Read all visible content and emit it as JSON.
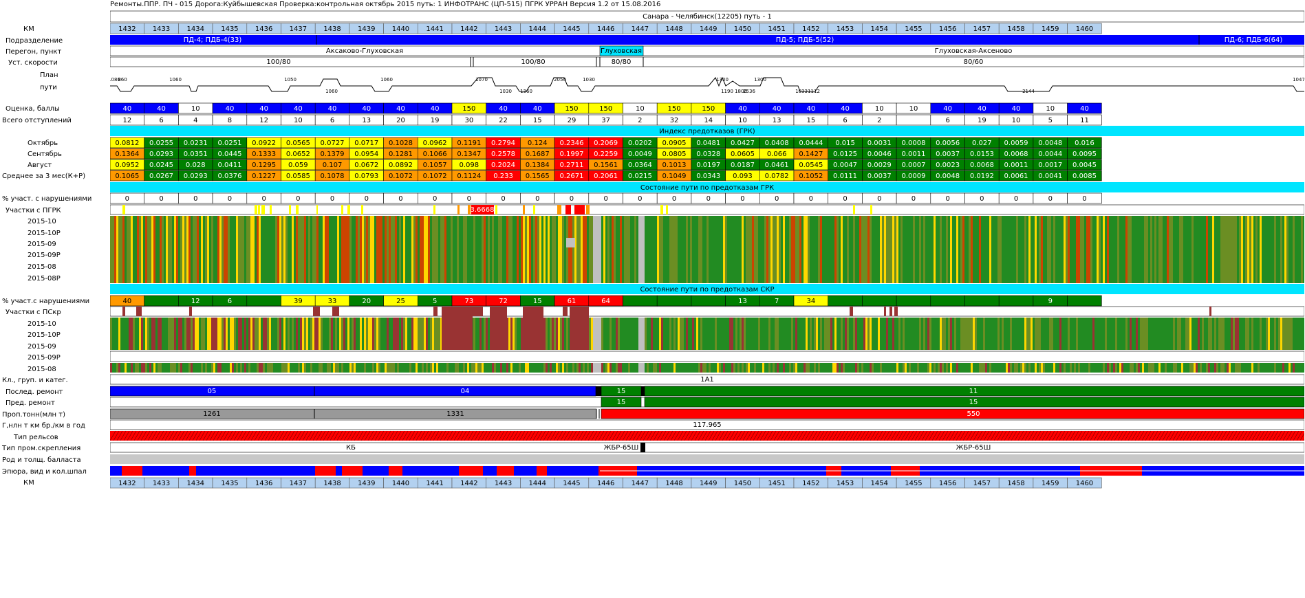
{
  "header": "Ремонты.ППР.  ПЧ - 015   Дорога:Куйбышевская Проверка:контрольная октябрь 2015  путь: 1 ИНФОТРАНС (ЦП-515) ПГРК УРРАН Версия 1.2 от 15.08.2016",
  "section_title": "Санара - Челябинск(12205) путь - 1",
  "labels": {
    "km": "КМ",
    "division": "Подразделение",
    "haul": "Перегон, пункт",
    "speed": "Уст. скорости",
    "plan1": "План",
    "plan2": "пути",
    "score": "Оценка, баллы",
    "total": "Всего отступлений",
    "oct": "Октябрь",
    "sep": "Сентябрь",
    "aug": "Август",
    "avg": "Среднее за 3 мес(К+Р)",
    "pct1": "% участ. с нарушениями",
    "pgrk": "Участки с ПГРК",
    "h1": "2015-10",
    "h2": "2015-10Р",
    "h3": "2015-09",
    "h4": "2015-09Р",
    "h5": "2015-08",
    "h6": "2015-08Р",
    "pct2": "% участ.с нарушениями",
    "pskr": "Участки с ПСкр",
    "s1": "2015-10",
    "s2": "2015-10Р",
    "s3": "2015-09",
    "s4": "2015-09Р",
    "s5": "2015-08",
    "class": "Кл., груп. и катег.",
    "lastrep": "Послед. ремонт",
    "prevrep": "Пред. ремонт",
    "tonnage": "Проп.тонн(млн т)",
    "gnet": "Г,нлн т км бр./км в год",
    "rails": "Тип рельсов",
    "fast": "Тип пром.скрепления",
    "ballast": "Род и толщ. балласта",
    "epura": "Эпюра, вид и кол.шпал",
    "km_bottom": "КМ"
  },
  "bands": {
    "grk": "Индекс предотказов (ГРК)",
    "grk_state": "Состояние пути по предотказам ГРК",
    "skr_state": "Состояние пути по предотказам СКР"
  },
  "division": [
    "ПД-4; ПДБ-4(33)",
    "ПД-5; ПДБ-5(52)",
    "ПД-6; ПДБ-6(64)"
  ],
  "hauls": [
    "Аксаково-Глуховская",
    "Глуховская",
    "Глуховская-Аксеново"
  ],
  "speeds": [
    "100/80",
    "100/80",
    "80/80",
    "80/60"
  ],
  "plan_labels": [
    "1080",
    "860",
    "1060",
    "1050",
    "1060",
    "1060",
    "1070",
    "1030",
    "1360",
    "2050",
    "1030",
    "1300",
    "1190",
    "1800",
    "2536",
    "1300",
    "1033",
    "1112",
    "2144",
    "1047"
  ],
  "class_value": "1А1",
  "last_repair": [
    "05",
    "04",
    "15",
    "11"
  ],
  "prev_repair": [
    "15",
    "15"
  ],
  "tonnage": [
    "1261",
    "1331",
    "550"
  ],
  "gnet_value": "117.965",
  "fastening": [
    "КБ",
    "ЖБР-65Ш",
    "ЖБР-65Ш"
  ],
  "pgrk_marker": "3.6668",
  "colors": {
    "blue": "#0000ff",
    "yellow": "#ffff00",
    "orange": "#ff9900",
    "red": "#ff0000",
    "green": "#008000",
    "darkred": "#993333",
    "cyan": "#00e5ff",
    "kmblue": "#b3d1f0"
  },
  "chart_data": {
    "type": "table",
    "km": [
      "1432",
      "1433",
      "1434",
      "1435",
      "1436",
      "1437",
      "1438",
      "1439",
      "1440",
      "1441",
      "1442",
      "1443",
      "1444",
      "1445",
      "1446",
      "1447",
      "1448",
      "1449",
      "1450",
      "1451",
      "1452",
      "1453",
      "1454",
      "1455",
      "1456",
      "1457",
      "1458",
      "1459",
      "1460"
    ],
    "score": [
      "40",
      "40",
      "10",
      "40",
      "40",
      "40",
      "40",
      "40",
      "40",
      "40",
      "150",
      "40",
      "40",
      "150",
      "150",
      "10",
      "150",
      "150",
      "40",
      "40",
      "40",
      "40",
      "10",
      "10",
      "40",
      "40",
      "40",
      "10",
      "40"
    ],
    "total": [
      "12",
      "6",
      "4",
      "8",
      "12",
      "10",
      "6",
      "13",
      "20",
      "19",
      "30",
      "22",
      "15",
      "29",
      "37",
      "2",
      "32",
      "14",
      "10",
      "13",
      "15",
      "6",
      "2",
      "",
      "6",
      "19",
      "10",
      "5",
      "11"
    ],
    "oct": [
      "0.0812",
      "0.0255",
      "0.0231",
      "0.0251",
      "0.0922",
      "0.0565",
      "0.0727",
      "0.0717",
      "0.1028",
      "0.0962",
      "0.1191",
      "0.2794",
      "0.124",
      "0.2346",
      "0.2069",
      "0.0202",
      "0.0905",
      "0.0481",
      "0.0427",
      "0.0408",
      "0.0444",
      "0.015",
      "0.0031",
      "0.0008",
      "0.0056",
      "0.027",
      "0.0059",
      "0.0048",
      "0.016"
    ],
    "sep": [
      "0.1364",
      "0.0293",
      "0.0351",
      "0.0445",
      "0.1333",
      "0.0652",
      "0.1379",
      "0.0954",
      "0.1281",
      "0.1066",
      "0.1347",
      "0.2578",
      "0.1687",
      "0.1997",
      "0.2259",
      "0.0049",
      "0.0805",
      "0.0328",
      "0.0605",
      "0.066",
      "0.1427",
      "0.0125",
      "0.0046",
      "0.0011",
      "0.0037",
      "0.0153",
      "0.0068",
      "0.0044",
      "0.0095"
    ],
    "aug": [
      "0.0952",
      "0.0245",
      "0.028",
      "0.0411",
      "0.1295",
      "0.059",
      "0.107",
      "0.0672",
      "0.0892",
      "0.1057",
      "0.098",
      "0.2024",
      "0.1384",
      "0.2711",
      "0.1561",
      "0.0364",
      "0.1013",
      "0.0197",
      "0.0187",
      "0.0461",
      "0.0545",
      "0.0047",
      "0.0029",
      "0.0007",
      "0.0023",
      "0.0068",
      "0.0011",
      "0.0017",
      "0.0045"
    ],
    "avg": [
      "0.1065",
      "0.0267",
      "0.0293",
      "0.0376",
      "0.1227",
      "0.0585",
      "0.1078",
      "0.0793",
      "0.1072",
      "0.1072",
      "0.1124",
      "0.233",
      "0.1565",
      "0.2671",
      "0.2061",
      "0.0215",
      "0.1049",
      "0.0343",
      "0.093",
      "0.0782",
      "0.1052",
      "0.0111",
      "0.0037",
      "0.0009",
      "0.0048",
      "0.0192",
      "0.0061",
      "0.0041",
      "0.0085"
    ],
    "pct_grk": [
      "0",
      "0",
      "0",
      "0",
      "0",
      "0",
      "0",
      "0",
      "0",
      "0",
      "0",
      "0",
      "0",
      "0",
      "0",
      "0",
      "0",
      "0",
      "0",
      "0",
      "0",
      "0",
      "0",
      "0",
      "0",
      "0",
      "0",
      "0",
      "0"
    ],
    "pct_skr": [
      "40",
      "",
      "12",
      "6",
      "",
      "39",
      "33",
      "20",
      "25",
      "5",
      "73",
      "72",
      "15",
      "61",
      "64",
      "",
      "",
      "",
      "13",
      "7",
      "34",
      "",
      "",
      "",
      "",
      "",
      "",
      "9",
      ""
    ]
  }
}
